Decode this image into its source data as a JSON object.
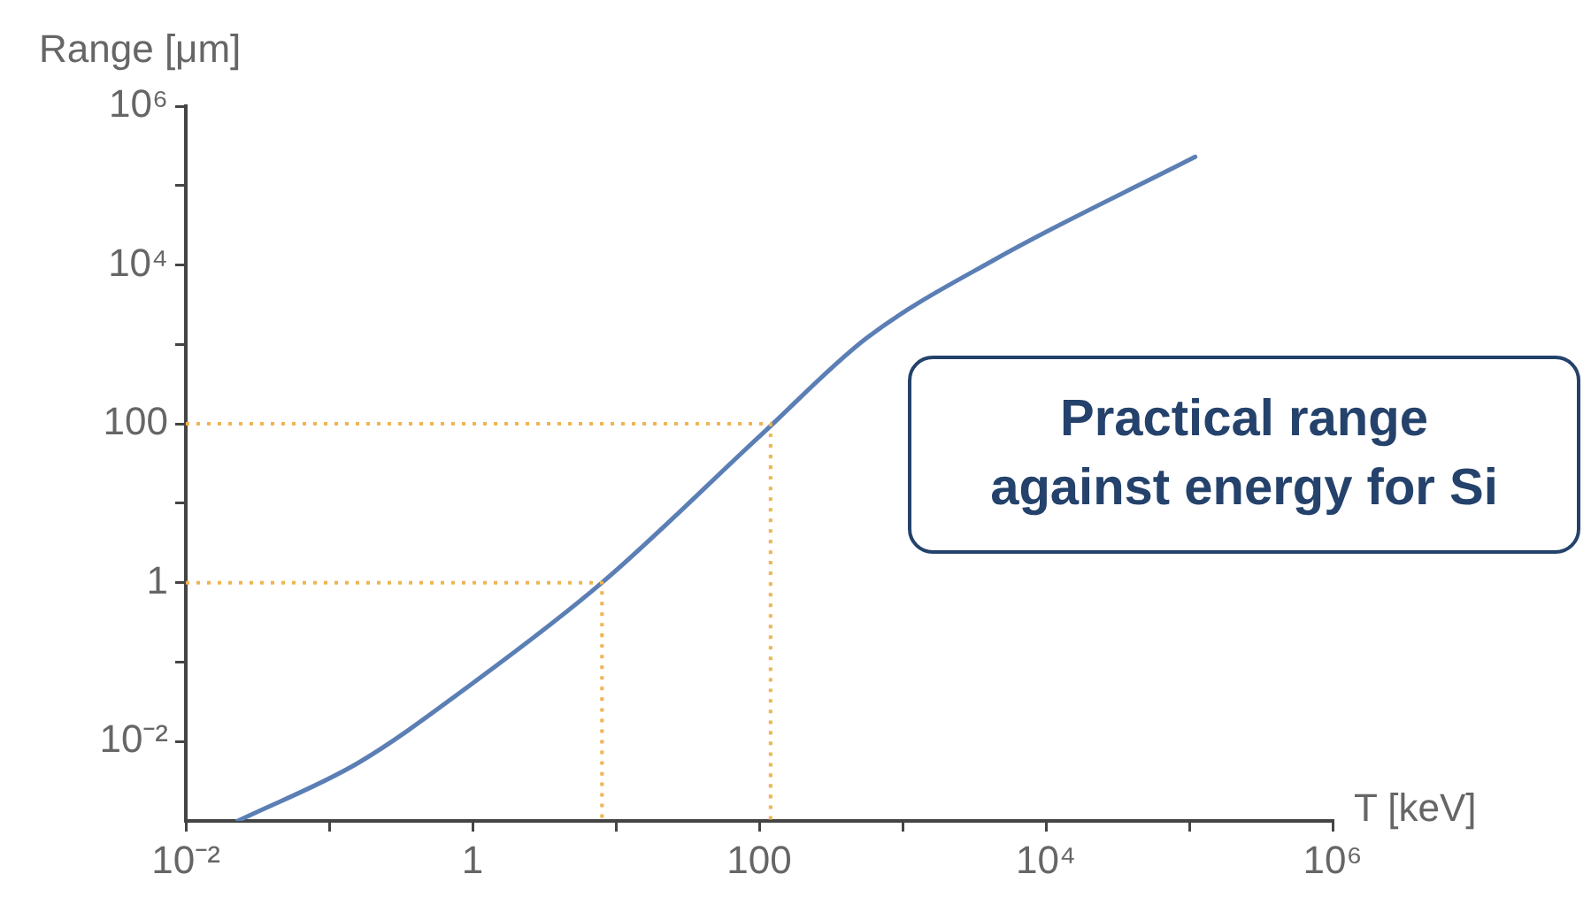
{
  "chart_data": {
    "type": "line",
    "xlabel": "T [keV]",
    "ylabel": "Range [μm]",
    "log": "xy",
    "grid": false,
    "legend": false,
    "marker": "none",
    "xlim": [
      0.01,
      1000000
    ],
    "ylim": [
      0.001,
      1000000
    ],
    "xticks": [
      {
        "value": 0.01,
        "label": "10⁻²"
      },
      {
        "value": 0.1,
        "label": null
      },
      1,
      {
        "value": 10,
        "label": null
      },
      100,
      {
        "value": 1000,
        "label": null
      },
      {
        "value": 10000,
        "label": "10⁴"
      },
      {
        "value": 100000,
        "label": null
      },
      {
        "value": 1000000,
        "label": "10⁶"
      }
    ],
    "yticks": [
      {
        "value": 0.01,
        "label": "10⁻²"
      },
      {
        "value": 0.1,
        "label": null
      },
      1,
      {
        "value": 10,
        "label": null
      },
      100,
      {
        "value": 1000,
        "label": null
      },
      {
        "value": 10000,
        "label": "10⁴"
      },
      {
        "value": 100000,
        "label": null
      },
      {
        "value": 1000000,
        "label": "10⁶"
      }
    ],
    "series": [
      {
        "color": "#5b7fb5",
        "line_style": "solid",
        "x": [
          0.023,
          0.16,
          1,
          8,
          105,
          560,
          4500,
          110000
        ],
        "values": [
          0.001,
          0.0054,
          0.054,
          1,
          75,
          1200,
          12000,
          230000
        ]
      },
      {
        "color": "#f0b451",
        "line_style": "dotted",
        "x": [
          0.01,
          8,
          8
        ],
        "values": [
          1,
          1,
          0.001
        ]
      },
      {
        "color": "#f0b451",
        "line_style": "dotted",
        "x": [
          0.01,
          120,
          120
        ],
        "values": [
          100,
          100,
          0.001
        ]
      }
    ],
    "annotations": [
      "Practical range against energy for Si"
    ]
  }
}
